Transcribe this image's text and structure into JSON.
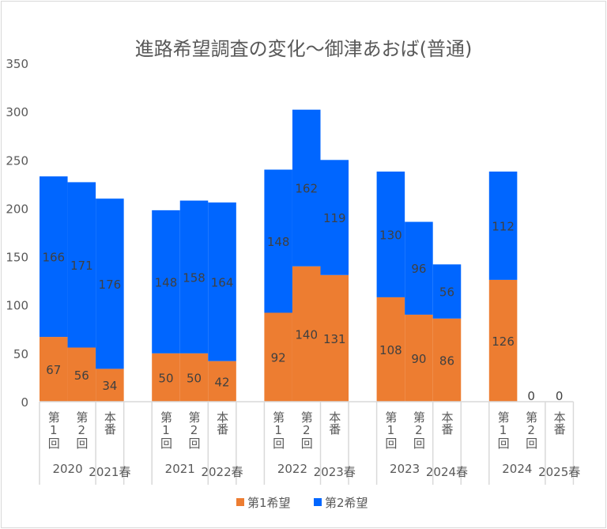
{
  "chart_data": {
    "type": "bar",
    "stacked": true,
    "title": "進路希望調査の変化～御津あおば(普通)",
    "ylim": [
      0,
      350
    ],
    "yticks": [
      0,
      50,
      100,
      150,
      200,
      250,
      300,
      350
    ],
    "grid": false,
    "legend_position": "bottom",
    "categories": [
      "第1回",
      "第2回",
      "本番",
      "",
      "第1回",
      "第2回",
      "本番",
      "",
      "第1回",
      "第2回",
      "本番",
      "",
      "第1回",
      "第2回",
      "本番",
      "",
      "第1回",
      "第2回",
      "本番"
    ],
    "groups": [
      {
        "label": "2020",
        "start": 0,
        "count": 2
      },
      {
        "label": "2021春",
        "start": 2,
        "count": 1
      },
      {
        "label": "",
        "start": 3,
        "count": 1
      },
      {
        "label": "2021",
        "start": 4,
        "count": 2
      },
      {
        "label": "2022春",
        "start": 6,
        "count": 1
      },
      {
        "label": "",
        "start": 7,
        "count": 1
      },
      {
        "label": "2022",
        "start": 8,
        "count": 2
      },
      {
        "label": "2023春",
        "start": 10,
        "count": 1
      },
      {
        "label": "",
        "start": 11,
        "count": 1
      },
      {
        "label": "2023",
        "start": 12,
        "count": 2
      },
      {
        "label": "2024春",
        "start": 14,
        "count": 1
      },
      {
        "label": "",
        "start": 15,
        "count": 1
      },
      {
        "label": "2024",
        "start": 16,
        "count": 2
      },
      {
        "label": "2025春",
        "start": 18,
        "count": 1
      }
    ],
    "series": [
      {
        "name": "第1希望",
        "color": "#ED7D31",
        "values": [
          67,
          56,
          34,
          null,
          50,
          50,
          42,
          null,
          92,
          140,
          131,
          null,
          108,
          90,
          86,
          null,
          126,
          0,
          0
        ]
      },
      {
        "name": "第2希望",
        "color": "#0066FF",
        "values": [
          166,
          171,
          176,
          null,
          148,
          158,
          164,
          null,
          148,
          162,
          119,
          null,
          130,
          96,
          56,
          null,
          112,
          null,
          null
        ]
      }
    ]
  }
}
